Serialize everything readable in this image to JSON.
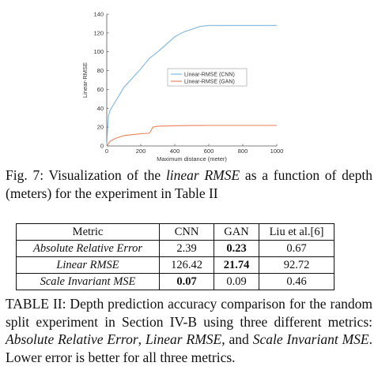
{
  "figure": {
    "caption_prefix": "Fig. 7: Visualization of the ",
    "caption_em": "linear RMSE",
    "caption_suffix": " as a function of depth (meters) for the experiment in Table II"
  },
  "chart_data": {
    "type": "line",
    "xlabel": "Maximum distance (meter)",
    "ylabel": "Linear-RMSE",
    "xlim": [
      0,
      1000
    ],
    "ylim": [
      0,
      140
    ],
    "xticks": [
      0,
      200,
      400,
      600,
      800,
      1000
    ],
    "yticks": [
      0,
      20,
      40,
      60,
      80,
      100,
      120,
      140
    ],
    "grid": false,
    "legend_position": "center-right",
    "series": [
      {
        "name": "Linear-RMSE (CNN)",
        "color": "#7cb6e0",
        "x": [
          0,
          5,
          10,
          20,
          40,
          60,
          80,
          100,
          150,
          200,
          250,
          300,
          350,
          400,
          450,
          500,
          550,
          600,
          650,
          700,
          800,
          900,
          1000
        ],
        "y": [
          0,
          20,
          32,
          38,
          44,
          50,
          56,
          62,
          72,
          82,
          93,
          100,
          108,
          116,
          121,
          124,
          127,
          128,
          128,
          128,
          128,
          128,
          128
        ]
      },
      {
        "name": "Linear-RMSE (GAN)",
        "color": "#e8825a",
        "x": [
          0,
          20,
          50,
          100,
          150,
          200,
          250,
          260,
          270,
          300,
          400,
          500,
          600,
          700,
          800,
          900,
          1000
        ],
        "y": [
          0,
          5,
          8,
          11,
          12,
          13,
          13.5,
          16,
          20,
          21,
          21.5,
          21.7,
          21.8,
          21.8,
          21.8,
          21.8,
          21.8
        ]
      }
    ]
  },
  "table": {
    "headers": [
      "Metric",
      "CNN",
      "GAN",
      "Liu et al.[6]"
    ],
    "rows": [
      [
        "Absolute Relative Error",
        "2.39",
        "0.23",
        "0.67"
      ],
      [
        "Linear RMSE",
        "126.42",
        "21.74",
        "92.72"
      ],
      [
        "Scale Invariant MSE",
        "0.07",
        "0.09",
        "0.46"
      ]
    ],
    "caption_prefix": "TABLE II: Depth prediction accuracy comparison for the random split experiment in Section IV-B using three different metrics: ",
    "caption_em1": "Absolute Relative Error",
    "caption_sep1": ", ",
    "caption_em2": "Linear RMSE",
    "caption_sep2": ", and ",
    "caption_em3": "Scale Invariant MSE",
    "caption_suffix": ". Lower error is better for all three metrics."
  }
}
